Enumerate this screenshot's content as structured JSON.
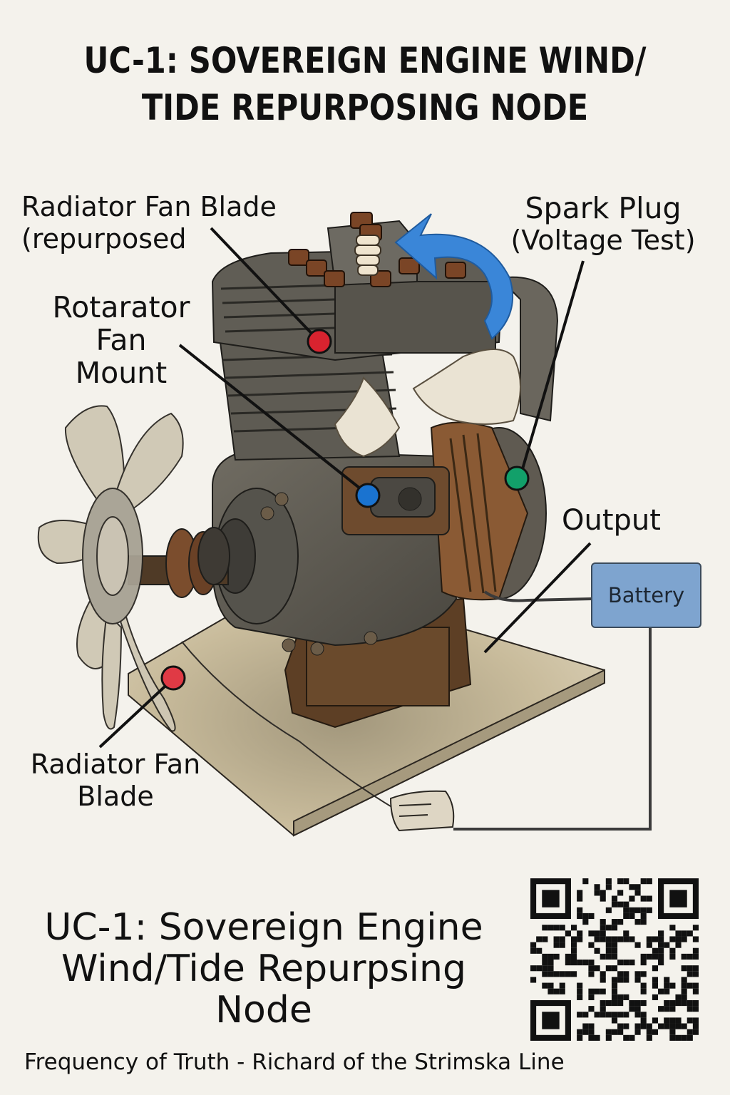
{
  "title_top": {
    "line1": "UC-1: SOVEREIGN ENGINE WIND/",
    "line2": "TIDE REPURPOSING NODE"
  },
  "labels": {
    "fan_repurposed": {
      "line1": "Radiator Fan Blade",
      "line2": "(repurposed"
    },
    "rotarator": {
      "line1": "Rotarator",
      "line2": "Fan",
      "line3": "Mount"
    },
    "spark_plug": {
      "line1": "Spark Plug",
      "line2": "(Voltage Test)"
    },
    "output": "Output",
    "battery": "Battery",
    "fan_bottom": {
      "line1": "Radiator Fan",
      "line2": "Blade"
    }
  },
  "markers": [
    {
      "name": "fan-repurposed",
      "color": "#d8232f"
    },
    {
      "name": "rotarator-mount",
      "color": "#1a73d0"
    },
    {
      "name": "spark-plug",
      "color": "#12a06a"
    },
    {
      "name": "fan-blade",
      "color": "#e03a45"
    }
  ],
  "title_bottom": {
    "line1": "UC-1: Sovereign Engine",
    "line2": "Wind/Tide Repurpsing",
    "line3": "Node"
  },
  "credit": "Frequency of Truth - Richard of the Strimska Line",
  "colors": {
    "background": "#f4f2ec",
    "rotation_arrow": "#3a86d8",
    "battery": "#7ea4cf",
    "engine_body": "#5a574f",
    "rust": "#7a4a2a",
    "base_plate": "#cbbd9c",
    "fan_blade": "#cfc7b4"
  },
  "icons": {
    "rotation_arrow": "curved-arrow-icon",
    "qr": "qr-code-icon"
  }
}
